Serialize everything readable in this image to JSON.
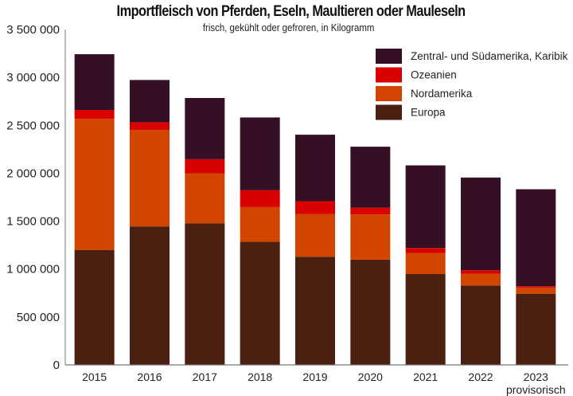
{
  "chart_data": {
    "type": "bar",
    "stacked": true,
    "title": "Importfleisch von Pferden, Eseln, Maultieren oder Mauleseln",
    "subtitle": "frisch, gekühlt oder gefroren, in Kilogramm",
    "xlabel": "",
    "ylabel": "",
    "ylim": [
      0,
      3500000
    ],
    "yticks": [
      0,
      500000,
      1000000,
      1500000,
      2000000,
      2500000,
      3000000,
      3500000
    ],
    "ytick_labels": [
      "0",
      "500 000",
      "1 000 000",
      "1 500 000",
      "2 000 000",
      "2 500 000",
      "3 000 000",
      "3 500 000"
    ],
    "grid": false,
    "legend_position": "top-right",
    "categories": [
      "2015",
      "2016",
      "2017",
      "2018",
      "2019",
      "2020",
      "2021",
      "2022",
      "2023"
    ],
    "category_notes": [
      "",
      "",
      "",
      "",
      "",
      "",
      "",
      "",
      "provisorisch"
    ],
    "series": [
      {
        "name": "Europa",
        "color": "#4a1f10",
        "values": [
          1200000,
          1445000,
          1478000,
          1284000,
          1129000,
          1098000,
          948000,
          829000,
          743000
        ]
      },
      {
        "name": "Nordamerika",
        "color": "#d24500",
        "values": [
          1368000,
          1007000,
          521000,
          363000,
          446000,
          472000,
          219000,
          122000,
          64000
        ]
      },
      {
        "name": "Ozeanien",
        "color": "#d90000",
        "values": [
          92000,
          80000,
          147000,
          175000,
          133000,
          71000,
          53000,
          37000,
          14000
        ]
      },
      {
        "name": "Zentral- und Südamerika, Karibik",
        "color": "#351025",
        "values": [
          582000,
          441000,
          639000,
          760000,
          694000,
          636000,
          862000,
          967000,
          1012000
        ]
      }
    ],
    "legend_order": [
      "Zentral- und Südamerika, Karibik",
      "Ozeanien",
      "Nordamerika",
      "Europa"
    ]
  }
}
